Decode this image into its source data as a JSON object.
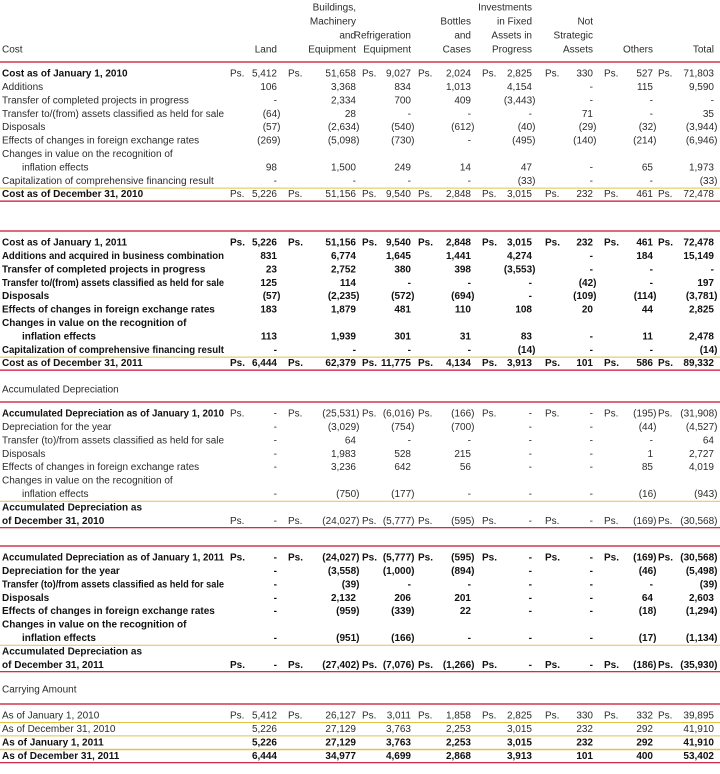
{
  "header": {
    "label": "Cost",
    "columns": [
      [
        "Land"
      ],
      [
        "Buildings,",
        "Machinery",
        "and",
        "Equipment"
      ],
      [
        "Refrigeration",
        "Equipment"
      ],
      [
        "Bottles",
        "and",
        "Cases"
      ],
      [
        "Investments",
        "in Fixed",
        "Assets in",
        "Progress"
      ],
      [
        "Not",
        "Strategic",
        "Assets"
      ],
      [
        "Others"
      ],
      [
        "Total"
      ]
    ]
  },
  "sections": [
    {
      "rows": [
        {
          "label": [
            "Cost as of January 1, 2010"
          ],
          "currency": "Ps.",
          "bold": "label",
          "values": [
            "5,412",
            "51,658",
            "9,027",
            "2,024",
            "2,825",
            "330",
            "527",
            "71,803"
          ]
        },
        {
          "label": [
            "Additions"
          ],
          "values": [
            "106",
            "3,368",
            "834",
            "1,013",
            "4,154",
            "-",
            "115",
            "9,590"
          ]
        },
        {
          "label": [
            "Transfer of completed projects in progress"
          ],
          "values": [
            "-",
            "2,334",
            "700",
            "409",
            "(3,443)",
            "-",
            "-",
            "-"
          ]
        },
        {
          "label": [
            "Transfer to/(from) assets classified as held for sale"
          ],
          "values": [
            "(64)",
            "28",
            "-",
            "-",
            "-",
            "71",
            "-",
            "35"
          ]
        },
        {
          "label": [
            "Disposals"
          ],
          "values": [
            "(57)",
            "(2,634)",
            "(540)",
            "(612)",
            "(40)",
            "(29)",
            "(32)",
            "(3,944)"
          ]
        },
        {
          "label": [
            "Effects of changes in foreign exchange rates"
          ],
          "values": [
            "(269)",
            "(5,098)",
            "(730)",
            "-",
            "(495)",
            "(140)",
            "(214)",
            "(6,946)"
          ]
        },
        {
          "label": [
            "Changes in value on the recognition of",
            "inflation effects"
          ],
          "values": [
            "98",
            "1,500",
            "249",
            "14",
            "47",
            "-",
            "65",
            "1,973"
          ]
        },
        {
          "label": [
            "Capitalization of comprehensive financing result"
          ],
          "values": [
            "-",
            "-",
            "-",
            "-",
            "(33)",
            "-",
            "-",
            "(33)"
          ]
        },
        {
          "label": [
            "Cost as of December 31, 2010"
          ],
          "currency": "Ps.",
          "bold": "label",
          "rule": "total",
          "values": [
            "5,226",
            "51,156",
            "9,540",
            "2,848",
            "3,015",
            "232",
            "461",
            "72,478"
          ]
        }
      ]
    },
    {
      "rows": [
        {
          "label": [
            "Cost as of January 1, 2011"
          ],
          "currency": "Ps.",
          "bold": "all",
          "values": [
            "5,226",
            "51,156",
            "9,540",
            "2,848",
            "3,015",
            "232",
            "461",
            "72,478"
          ]
        },
        {
          "label": [
            "Additions and acquired in business combination"
          ],
          "bold": "all",
          "values": [
            "831",
            "6,774",
            "1,645",
            "1,441",
            "4,274",
            "-",
            "184",
            "15,149"
          ]
        },
        {
          "label": [
            "Transfer of completed projects in progress"
          ],
          "bold": "all",
          "values": [
            "23",
            "2,752",
            "380",
            "398",
            "(3,553)",
            "-",
            "-",
            "-"
          ]
        },
        {
          "label": [
            "Transfer to/(from) assets classified as held for sale"
          ],
          "bold": "all",
          "values": [
            "125",
            "114",
            "-",
            "-",
            "-",
            "(42)",
            "-",
            "197"
          ]
        },
        {
          "label": [
            "Disposals"
          ],
          "bold": "all",
          "values": [
            "(57)",
            "(2,235)",
            "(572)",
            "(694)",
            "-",
            "(109)",
            "(114)",
            "(3,781)"
          ]
        },
        {
          "label": [
            "Effects of changes in foreign exchange rates"
          ],
          "bold": "all",
          "values": [
            "183",
            "1,879",
            "481",
            "110",
            "108",
            "20",
            "44",
            "2,825"
          ]
        },
        {
          "label": [
            "Changes in value on the recognition of",
            "inflation effects"
          ],
          "bold": "all",
          "values": [
            "113",
            "1,939",
            "301",
            "31",
            "83",
            "-",
            "11",
            "2,478"
          ]
        },
        {
          "label": [
            "Capitalization of comprehensive financing result"
          ],
          "bold": "all",
          "values": [
            "-",
            "-",
            "-",
            "-",
            "(14)",
            "-",
            "-",
            "(14)"
          ]
        },
        {
          "label": [
            "Cost as of December 31, 2011"
          ],
          "currency": "Ps.",
          "bold": "all",
          "rule": "total",
          "values": [
            "6,444",
            "62,379",
            "11,775",
            "4,134",
            "3,913",
            "101",
            "586",
            "89,332"
          ]
        }
      ]
    },
    {
      "heading": "Accumulated Depreciation"
    },
    {
      "rows": [
        {
          "label": [
            "Accumulated Depreciation as of January 1, 2010"
          ],
          "currency": "Ps.",
          "bold": "label",
          "values": [
            "-",
            "(25,531)",
            "(6,016)",
            "(166)",
            "-",
            "-",
            "(195)",
            "(31,908)"
          ]
        },
        {
          "label": [
            "Depreciation for the year"
          ],
          "values": [
            "-",
            "(3,029)",
            "(754)",
            "(700)",
            "-",
            "-",
            "(44)",
            "(4,527)"
          ]
        },
        {
          "label": [
            "Transfer (to)/from assets classified as held for sale"
          ],
          "values": [
            "-",
            "64",
            "-",
            "-",
            "-",
            "-",
            "-",
            "64"
          ]
        },
        {
          "label": [
            "Disposals"
          ],
          "values": [
            "-",
            "1,983",
            "528",
            "215",
            "-",
            "-",
            "1",
            "2,727"
          ]
        },
        {
          "label": [
            "Effects of changes in foreign exchange rates"
          ],
          "values": [
            "-",
            "3,236",
            "642",
            "56",
            "-",
            "-",
            "85",
            "4,019"
          ]
        },
        {
          "label": [
            "Changes in value on the recognition of",
            "inflation effects"
          ],
          "values": [
            "-",
            "(750)",
            "(177)",
            "-",
            "-",
            "-",
            "(16)",
            "(943)"
          ]
        },
        {
          "label": [
            "Accumulated Depreciation as",
            "of December 31, 2010"
          ],
          "currency": "Ps.",
          "bold": "label",
          "rule": "total",
          "values": [
            "-",
            "(24,027)",
            "(5,777)",
            "(595)",
            "-",
            "-",
            "(169)",
            "(30,568)"
          ]
        }
      ]
    },
    {
      "rows": [
        {
          "label": [
            "Accumulated Depreciation as of January 1, 2011"
          ],
          "currency": "Ps.",
          "bold": "all",
          "values": [
            "-",
            "(24,027)",
            "(5,777)",
            "(595)",
            "-",
            "-",
            "(169)",
            "(30,568)"
          ]
        },
        {
          "label": [
            "Depreciation for the year"
          ],
          "bold": "all",
          "values": [
            "-",
            "(3,558)",
            "(1,000)",
            "(894)",
            "-",
            "-",
            "(46)",
            "(5,498)"
          ]
        },
        {
          "label": [
            "Transfer (to)/from assets classified as held for sale"
          ],
          "bold": "all",
          "values": [
            "-",
            "(39)",
            "-",
            "-",
            "-",
            "-",
            "-",
            "(39)"
          ]
        },
        {
          "label": [
            "Disposals"
          ],
          "bold": "all",
          "values": [
            "-",
            "2,132",
            "206",
            "201",
            "-",
            "-",
            "64",
            "2,603"
          ]
        },
        {
          "label": [
            "Effects of changes in foreign exchange rates"
          ],
          "bold": "all",
          "values": [
            "-",
            "(959)",
            "(339)",
            "22",
            "-",
            "-",
            "(18)",
            "(1,294)"
          ]
        },
        {
          "label": [
            "Changes in value on the recognition of",
            "inflation effects"
          ],
          "bold": "all",
          "values": [
            "-",
            "(951)",
            "(166)",
            "-",
            "-",
            "-",
            "(17)",
            "(1,134)"
          ]
        },
        {
          "label": [
            "Accumulated Depreciation as",
            "of December 31, 2011"
          ],
          "currency": "Ps.",
          "bold": "all",
          "rule": "total",
          "values": [
            "-",
            "(27,402)",
            "(7,076)",
            "(1,266)",
            "-",
            "-",
            "(186)",
            "(35,930)"
          ]
        }
      ]
    },
    {
      "heading": "Carrying Amount"
    },
    {
      "rows": [
        {
          "label": [
            "As of January 1, 2010"
          ],
          "currency": "Ps.",
          "rule": "under",
          "values": [
            "5,412",
            "26,127",
            "3,011",
            "1,858",
            "2,825",
            "330",
            "332",
            "39,895"
          ]
        },
        {
          "label": [
            "As of December 31, 2010"
          ],
          "rule": "under",
          "values": [
            "5,226",
            "27,129",
            "3,763",
            "2,253",
            "3,015",
            "232",
            "292",
            "41,910"
          ]
        },
        {
          "label": [
            "As of January 1, 2011"
          ],
          "bold": "all",
          "rule": "under",
          "values": [
            "5,226",
            "27,129",
            "3,763",
            "2,253",
            "3,015",
            "232",
            "292",
            "41,910"
          ]
        },
        {
          "label": [
            "As of December 31, 2011"
          ],
          "bold": "all",
          "rule": "total",
          "values": [
            "6,444",
            "34,977",
            "4,699",
            "2,868",
            "3,913",
            "101",
            "400",
            "53,402"
          ]
        }
      ]
    }
  ]
}
